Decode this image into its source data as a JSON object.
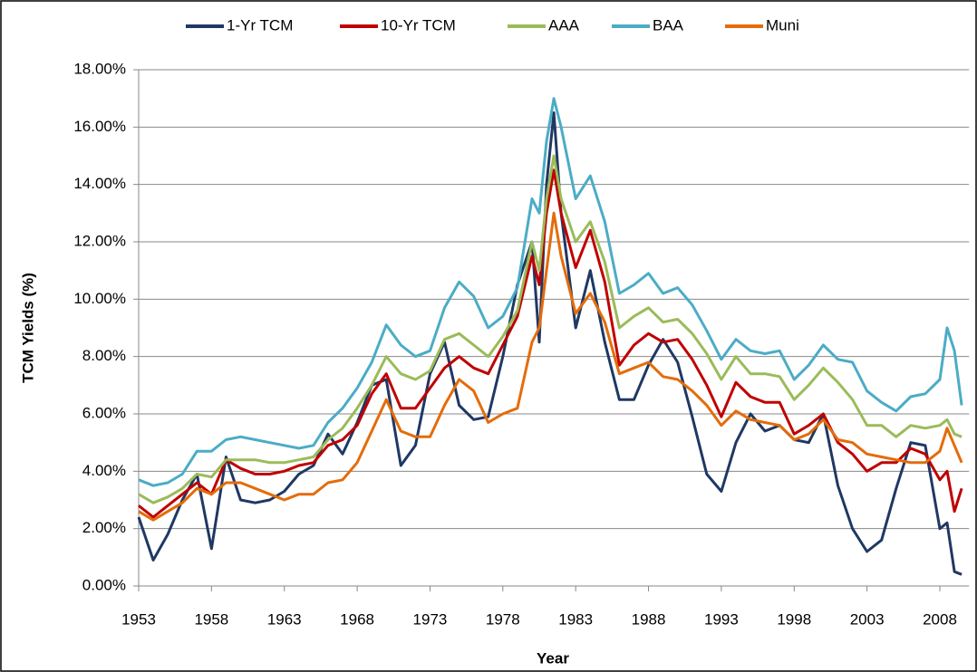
{
  "chart_data": {
    "type": "line",
    "x_label": "Year",
    "y_label": "TCM Yields (%)",
    "x": [
      1953,
      1954,
      1955,
      1956,
      1957,
      1958,
      1959,
      1960,
      1961,
      1962,
      1963,
      1964,
      1965,
      1966,
      1967,
      1968,
      1969,
      1970,
      1971,
      1972,
      1973,
      1974,
      1975,
      1976,
      1977,
      1978,
      1979,
      1980,
      1980.5,
      1981,
      1981.5,
      1982,
      1983,
      1984,
      1985,
      1986,
      1987,
      1988,
      1989,
      1990,
      1991,
      1992,
      1993,
      1994,
      1995,
      1996,
      1997,
      1998,
      1999,
      2000,
      2001,
      2002,
      2003,
      2004,
      2005,
      2006,
      2007,
      2008,
      2008.5,
      2009,
      2009.5
    ],
    "series": [
      {
        "name": "1-Yr TCM",
        "color": "#1f3864",
        "values": [
          2.4,
          0.9,
          1.8,
          3.0,
          3.9,
          1.3,
          4.5,
          3.0,
          2.9,
          3.0,
          3.3,
          3.9,
          4.2,
          5.3,
          4.6,
          5.7,
          7.0,
          7.2,
          4.2,
          4.9,
          7.4,
          8.5,
          6.3,
          5.8,
          5.9,
          8.0,
          10.5,
          12.0,
          8.5,
          14.0,
          16.5,
          13.0,
          9.0,
          11.0,
          8.5,
          6.5,
          6.5,
          7.7,
          8.6,
          7.8,
          5.9,
          3.9,
          3.3,
          5.0,
          6.0,
          5.4,
          5.6,
          5.1,
          5.0,
          6.0,
          3.5,
          2.0,
          1.2,
          1.6,
          3.4,
          5.0,
          4.9,
          2.0,
          2.2,
          0.5,
          0.4
        ]
      },
      {
        "name": "10-Yr TCM",
        "color": "#c00000",
        "values": [
          2.8,
          2.4,
          2.8,
          3.2,
          3.6,
          3.2,
          4.4,
          4.1,
          3.9,
          3.9,
          4.0,
          4.2,
          4.3,
          4.9,
          5.1,
          5.6,
          6.7,
          7.4,
          6.2,
          6.2,
          6.9,
          7.6,
          8.0,
          7.6,
          7.4,
          8.4,
          9.4,
          11.5,
          10.5,
          13.0,
          14.5,
          13.0,
          11.1,
          12.4,
          10.6,
          7.7,
          8.4,
          8.8,
          8.5,
          8.6,
          7.9,
          7.0,
          5.9,
          7.1,
          6.6,
          6.4,
          6.4,
          5.3,
          5.6,
          6.0,
          5.0,
          4.6,
          4.0,
          4.3,
          4.3,
          4.8,
          4.6,
          3.7,
          4.0,
          2.6,
          3.4
        ]
      },
      {
        "name": "AAA",
        "color": "#9bbb59",
        "values": [
          3.2,
          2.9,
          3.1,
          3.4,
          3.9,
          3.8,
          4.4,
          4.4,
          4.4,
          4.3,
          4.3,
          4.4,
          4.5,
          5.1,
          5.5,
          6.2,
          7.0,
          8.0,
          7.4,
          7.2,
          7.5,
          8.6,
          8.8,
          8.4,
          8.0,
          8.7,
          9.6,
          12.0,
          11.0,
          13.5,
          15.0,
          13.5,
          12.0,
          12.7,
          11.3,
          9.0,
          9.4,
          9.7,
          9.2,
          9.3,
          8.8,
          8.1,
          7.2,
          8.0,
          7.4,
          7.4,
          7.3,
          6.5,
          7.0,
          7.6,
          7.1,
          6.5,
          5.6,
          5.6,
          5.2,
          5.6,
          5.5,
          5.6,
          5.8,
          5.3,
          5.2
        ]
      },
      {
        "name": "BAA",
        "color": "#4bacc6",
        "values": [
          3.7,
          3.5,
          3.6,
          3.9,
          4.7,
          4.7,
          5.1,
          5.2,
          5.1,
          5.0,
          4.9,
          4.8,
          4.9,
          5.7,
          6.2,
          6.9,
          7.8,
          9.1,
          8.4,
          8.0,
          8.2,
          9.7,
          10.6,
          10.1,
          9.0,
          9.4,
          10.4,
          13.5,
          13.0,
          15.5,
          17.0,
          16.0,
          13.5,
          14.3,
          12.7,
          10.2,
          10.5,
          10.9,
          10.2,
          10.4,
          9.8,
          8.9,
          7.9,
          8.6,
          8.2,
          8.1,
          8.2,
          7.2,
          7.7,
          8.4,
          7.9,
          7.8,
          6.8,
          6.4,
          6.1,
          6.6,
          6.7,
          7.2,
          9.0,
          8.2,
          6.3
        ]
      },
      {
        "name": "Muni",
        "color": "#e46c0a",
        "values": [
          2.6,
          2.3,
          2.6,
          2.9,
          3.4,
          3.2,
          3.6,
          3.6,
          3.4,
          3.2,
          3.0,
          3.2,
          3.2,
          3.6,
          3.7,
          4.3,
          5.4,
          6.5,
          5.4,
          5.2,
          5.2,
          6.3,
          7.2,
          6.8,
          5.7,
          6.0,
          6.2,
          8.5,
          9.0,
          11.0,
          13.0,
          11.5,
          9.5,
          10.2,
          9.2,
          7.4,
          7.6,
          7.8,
          7.3,
          7.2,
          6.8,
          6.3,
          5.6,
          6.1,
          5.8,
          5.7,
          5.6,
          5.1,
          5.3,
          5.8,
          5.1,
          5.0,
          4.6,
          4.5,
          4.4,
          4.3,
          4.3,
          4.7,
          5.5,
          4.9,
          4.3
        ]
      }
    ],
    "xlim": [
      1953,
      2010
    ],
    "xticks": [
      1953,
      1958,
      1963,
      1968,
      1973,
      1978,
      1983,
      1988,
      1993,
      1998,
      2003,
      2008
    ],
    "ylim": [
      0,
      18
    ],
    "yticks": [
      {
        "value": 0,
        "label": "0.00%"
      },
      {
        "value": 2,
        "label": "2.00%"
      },
      {
        "value": 4,
        "label": "4.00%"
      },
      {
        "value": 6,
        "label": "6.00%"
      },
      {
        "value": 8,
        "label": "8.00%"
      },
      {
        "value": 10,
        "label": "10.00%"
      },
      {
        "value": 12,
        "label": "12.00%"
      },
      {
        "value": 14,
        "label": "14.00%"
      },
      {
        "value": 16,
        "label": "16.00%"
      },
      {
        "value": 18,
        "label": "18.00%"
      }
    ],
    "grid": true,
    "legend": "top"
  }
}
